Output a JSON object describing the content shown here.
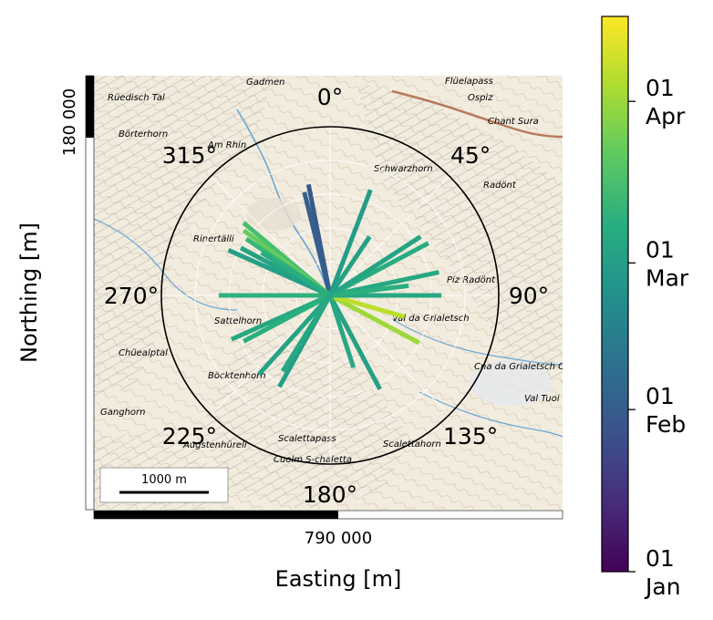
{
  "chart_data": {
    "type": "polar-bar-over-map",
    "xlabel": "Easting [m]",
    "ylabel": "Northing [m]",
    "x_tick_label": "790 000",
    "y_tick_label": "180 000",
    "scalebar_label": "1000 m",
    "angle_labels": [
      "0°",
      "45°",
      "90°",
      "135°",
      "180°",
      "225°",
      "270°",
      "315°"
    ],
    "angle_values": [
      0,
      45,
      90,
      135,
      180,
      225,
      270,
      315
    ],
    "colorbar": {
      "colormap": "viridis",
      "ticks": [
        {
          "day": "01",
          "month": "Jan",
          "pos": 0.0
        },
        {
          "day": "01",
          "month": "Feb",
          "pos": 0.292
        },
        {
          "day": "01",
          "month": "Mar",
          "pos": 0.556
        },
        {
          "day": "01",
          "month": "Apr",
          "pos": 0.847
        }
      ]
    },
    "radius_max": 1.0,
    "bars": [
      {
        "azimuth": 349,
        "length": 0.67,
        "time": 0.28
      },
      {
        "azimuth": 346,
        "length": 0.63,
        "time": 0.3
      },
      {
        "azimuth": 21,
        "length": 0.67,
        "time": 0.55
      },
      {
        "azimuth": 310,
        "length": 0.67,
        "time": 0.7
      },
      {
        "azimuth": 307,
        "length": 0.64,
        "time": 0.76
      },
      {
        "azimuth": 304,
        "length": 0.6,
        "time": 0.66
      },
      {
        "azimuth": 298,
        "length": 0.6,
        "time": 0.58
      },
      {
        "azimuth": 294,
        "length": 0.66,
        "time": 0.56
      },
      {
        "azimuth": 302,
        "length": 0.48,
        "time": 0.62
      },
      {
        "azimuth": 270,
        "length": 0.66,
        "time": 0.64
      },
      {
        "azimuth": 246,
        "length": 0.64,
        "time": 0.6
      },
      {
        "azimuth": 242,
        "length": 0.58,
        "time": 0.63
      },
      {
        "azimuth": 222,
        "length": 0.63,
        "time": 0.58
      },
      {
        "azimuth": 209,
        "length": 0.62,
        "time": 0.56
      },
      {
        "azimuth": 212,
        "length": 0.53,
        "time": 0.6
      },
      {
        "azimuth": 152,
        "length": 0.63,
        "time": 0.57
      },
      {
        "azimuth": 118,
        "length": 0.6,
        "time": 0.85
      },
      {
        "azimuth": 106,
        "length": 0.46,
        "time": 0.9
      },
      {
        "azimuth": 78,
        "length": 0.66,
        "time": 0.6
      },
      {
        "azimuth": 62,
        "length": 0.66,
        "time": 0.62
      },
      {
        "azimuth": 57,
        "length": 0.64,
        "time": 0.58
      },
      {
        "azimuth": 90,
        "length": 0.66,
        "time": 0.6
      },
      {
        "azimuth": 83,
        "length": 0.47,
        "time": 0.63
      },
      {
        "azimuth": 34,
        "length": 0.42,
        "time": 0.57
      },
      {
        "azimuth": 162,
        "length": 0.45,
        "time": 0.6
      }
    ]
  },
  "map_labels": [
    "Gadmen",
    "Rüedisch Tal",
    "Börterhorn",
    "Am Rhin",
    "Schwarzhorn",
    "Flüelapass",
    "Ospiz",
    "Chant Sura",
    "Radönt",
    "Sattelhorn",
    "Böcktenhorn",
    "Augstenhüreli",
    "Scalettapass",
    "Scalettahorn",
    "Cuolm S-chaletta",
    "Piz Radönt",
    "Rinertälli",
    "Val da Grialetsch",
    "Cna da Grialetsch CAS",
    "Val Tuoi",
    "Chüealptal",
    "Ganghorn"
  ]
}
